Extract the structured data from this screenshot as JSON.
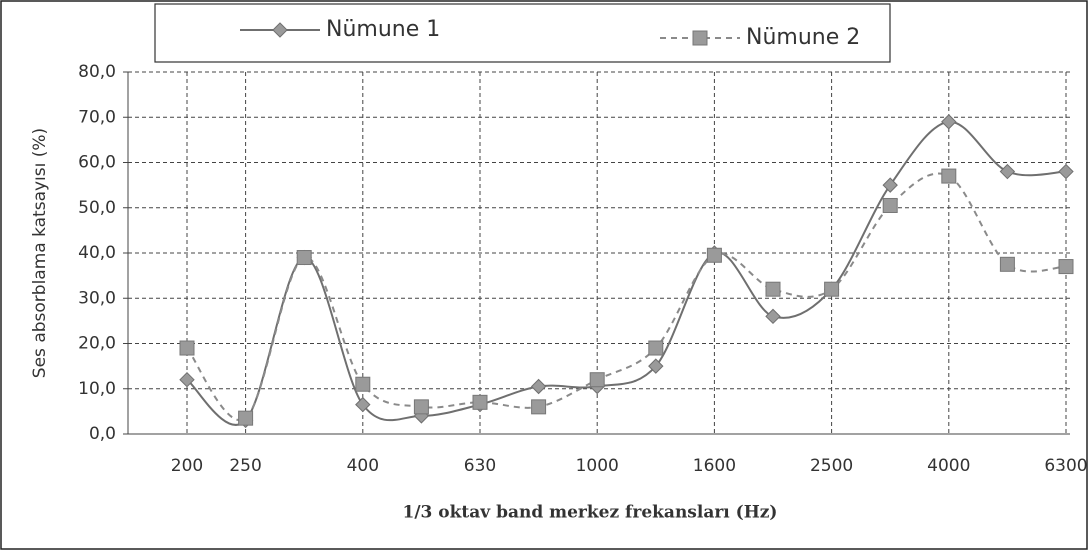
{
  "chart_data": {
    "type": "line",
    "y_label": "Ses absorblama katsayısı (%)",
    "x_label": "1/3 oktav band merkez frekansları (Hz)",
    "categories": [
      "200",
      "250",
      null,
      "400",
      null,
      "630",
      null,
      "1000",
      null,
      "1600",
      null,
      "2500",
      null,
      "4000",
      null,
      "6300"
    ],
    "series": [
      {
        "name": "Nümune 1",
        "color": "#6f6f6f",
        "marker": "diamond",
        "dash": false,
        "values": [
          12,
          3,
          39,
          6.5,
          4,
          6.5,
          10.5,
          10.5,
          15,
          40,
          26,
          32,
          55,
          69,
          58,
          58
        ]
      },
      {
        "name": "Nümune 2",
        "color": "#8a8a8a",
        "marker": "square",
        "dash": true,
        "values": [
          19,
          3.5,
          39,
          11,
          6,
          7,
          6,
          12,
          19,
          39.5,
          32,
          32,
          50.5,
          57,
          37.5,
          37
        ]
      }
    ],
    "ylim": [
      0,
      80
    ],
    "yticks": [
      {
        "value": 0,
        "label": "0,0"
      },
      {
        "value": 10,
        "label": "10,0"
      },
      {
        "value": 20,
        "label": "20,0"
      },
      {
        "value": 30,
        "label": "30,0"
      },
      {
        "value": 40,
        "label": "40,0"
      },
      {
        "value": 50,
        "label": "50,0"
      },
      {
        "value": 60,
        "label": "60,0"
      },
      {
        "value": 70,
        "label": "70,0"
      },
      {
        "value": 80,
        "label": "80,0"
      }
    ],
    "grid": true
  }
}
